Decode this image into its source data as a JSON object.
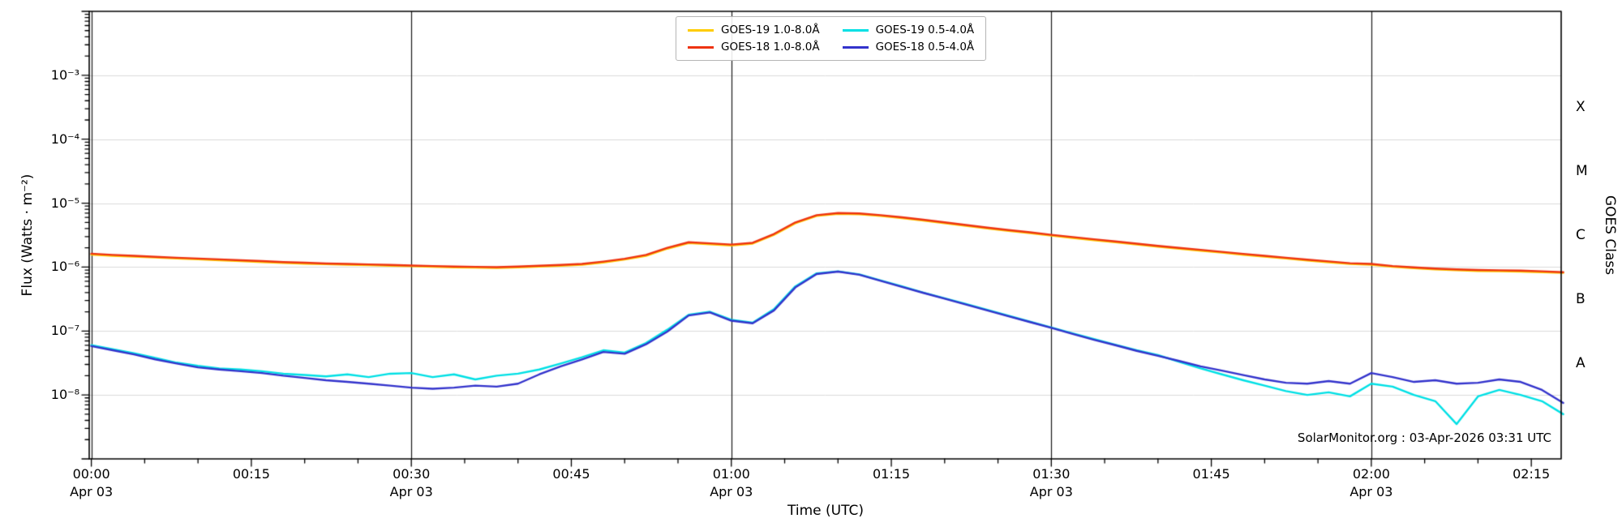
{
  "chart_data": {
    "type": "line",
    "title": "",
    "xlabel": "Time (UTC)",
    "ylabel": "Flux (Watts · m⁻²)",
    "ylabel_right": "GOES Class",
    "watermark": "SolarMonitor.org : 03-Apr-2026 03:31 UTC",
    "y_scale": "log",
    "ylim": [
      1e-09,
      0.01
    ],
    "x_axis_note": "minutes after 00:00 UTC on Apr 03",
    "x_range_minutes": [
      -0.2,
      137.8
    ],
    "grid": "horizontal gridlines at each decade",
    "legend_position": "top-center, 2 columns",
    "day_lines_minutes": [
      0,
      30,
      60,
      90,
      120
    ],
    "colors": {
      "background": "#ffffff",
      "grid": "#dcdcdc",
      "day_line": "#1a1a1a",
      "axis": "#000000"
    },
    "yticks": [
      {
        "label": "10⁻³",
        "value": 0.001
      },
      {
        "label": "10⁻⁴",
        "value": 0.0001
      },
      {
        "label": "10⁻⁵",
        "value": 1e-05
      },
      {
        "label": "10⁻⁶",
        "value": 1e-06
      },
      {
        "label": "10⁻⁷",
        "value": 1e-07
      },
      {
        "label": "10⁻⁸",
        "value": 1e-08
      }
    ],
    "goes_class_labels": [
      {
        "label": "X",
        "value": 0.0003162
      },
      {
        "label": "M",
        "value": 3.162e-05
      },
      {
        "label": "C",
        "value": 3.162e-06
      },
      {
        "label": "B",
        "value": 3.162e-07
      },
      {
        "label": "A",
        "value": 3.162e-08
      }
    ],
    "xticks": [
      {
        "label": "00:00",
        "minute": 0,
        "sub": "Apr 03"
      },
      {
        "label": "00:15",
        "minute": 15
      },
      {
        "label": "00:30",
        "minute": 30,
        "sub": "Apr 03"
      },
      {
        "label": "00:45",
        "minute": 45
      },
      {
        "label": "01:00",
        "minute": 60,
        "sub": "Apr 03"
      },
      {
        "label": "01:15",
        "minute": 75
      },
      {
        "label": "01:30",
        "minute": 90,
        "sub": "Apr 03"
      },
      {
        "label": "01:45",
        "minute": 105
      },
      {
        "label": "02:00",
        "minute": 120,
        "sub": "Apr 03"
      },
      {
        "label": "02:15",
        "minute": 135
      }
    ],
    "x_minutes": [
      0,
      2,
      4,
      6,
      8,
      10,
      12,
      14,
      16,
      18,
      20,
      22,
      24,
      26,
      28,
      30,
      32,
      34,
      36,
      38,
      40,
      42,
      44,
      46,
      48,
      50,
      52,
      54,
      56,
      58,
      60,
      62,
      64,
      66,
      68,
      70,
      72,
      74,
      76,
      78,
      80,
      82,
      84,
      86,
      88,
      90,
      92,
      94,
      96,
      98,
      100,
      102,
      104,
      106,
      108,
      110,
      112,
      114,
      116,
      118,
      120,
      122,
      124,
      126,
      128,
      130,
      132,
      134,
      136,
      138
    ],
    "series": [
      {
        "name": "GOES-19 1.0-8.0Å",
        "color": "#ffcc00",
        "scale": 1e-06,
        "values": [
          1.57,
          1.5,
          1.46,
          1.41,
          1.36,
          1.32,
          1.28,
          1.24,
          1.2,
          1.16,
          1.13,
          1.11,
          1.09,
          1.07,
          1.05,
          1.03,
          1.01,
          0.99,
          0.98,
          0.97,
          0.99,
          1.02,
          1.05,
          1.09,
          1.18,
          1.31,
          1.5,
          1.94,
          2.38,
          2.28,
          2.18,
          2.33,
          3.2,
          4.85,
          6.31,
          6.79,
          6.69,
          6.31,
          5.82,
          5.34,
          4.85,
          4.41,
          4.03,
          3.69,
          3.4,
          3.1,
          2.86,
          2.64,
          2.44,
          2.26,
          2.09,
          1.94,
          1.8,
          1.68,
          1.56,
          1.46,
          1.36,
          1.27,
          1.19,
          1.12,
          1.09,
          1.01,
          0.96,
          0.92,
          0.89,
          0.87,
          0.86,
          0.85,
          0.83,
          0.81
        ]
      },
      {
        "name": "GOES-18 1.0-8.0Å",
        "color": "#ee3311",
        "scale": 1e-06,
        "values": [
          1.62,
          1.55,
          1.5,
          1.45,
          1.4,
          1.36,
          1.32,
          1.28,
          1.24,
          1.2,
          1.17,
          1.14,
          1.12,
          1.1,
          1.08,
          1.06,
          1.04,
          1.02,
          1.01,
          1.0,
          1.02,
          1.05,
          1.08,
          1.12,
          1.22,
          1.35,
          1.55,
          2.0,
          2.45,
          2.35,
          2.25,
          2.4,
          3.3,
          5.0,
          6.5,
          7.0,
          6.9,
          6.5,
          6.0,
          5.5,
          5.0,
          4.55,
          4.15,
          3.8,
          3.5,
          3.2,
          2.95,
          2.72,
          2.52,
          2.33,
          2.15,
          2.0,
          1.86,
          1.73,
          1.61,
          1.5,
          1.4,
          1.31,
          1.23,
          1.15,
          1.12,
          1.04,
          0.99,
          0.95,
          0.92,
          0.9,
          0.89,
          0.88,
          0.86,
          0.83
        ]
      },
      {
        "name": "GOES-19 0.5-4.0Å",
        "color": "#00e0e5",
        "scale": 1e-08,
        "values": [
          6.0,
          5.2,
          4.5,
          3.8,
          3.2,
          2.85,
          2.6,
          2.5,
          2.35,
          2.15,
          2.05,
          1.95,
          2.1,
          1.9,
          2.15,
          2.2,
          1.9,
          2.1,
          1.75,
          2.0,
          2.15,
          2.5,
          3.1,
          3.9,
          5.0,
          4.6,
          6.5,
          10.5,
          18,
          20,
          15,
          13.5,
          22,
          50,
          80,
          86,
          77,
          62,
          50,
          40,
          32.5,
          26.5,
          21.5,
          17.3,
          14,
          11.4,
          9.2,
          7.5,
          6.1,
          5.0,
          4.2,
          3.3,
          2.6,
          2.1,
          1.7,
          1.4,
          1.15,
          1.0,
          1.1,
          0.95,
          1.5,
          1.35,
          1.0,
          0.8,
          0.35,
          0.95,
          1.2,
          1.0,
          0.8,
          0.5
        ]
      },
      {
        "name": "GOES-18 0.5-4.0Å",
        "color": "#3333cc",
        "scale": 1e-08,
        "values": [
          5.8,
          5.0,
          4.3,
          3.6,
          3.1,
          2.7,
          2.5,
          2.35,
          2.2,
          2.0,
          1.85,
          1.7,
          1.6,
          1.5,
          1.4,
          1.3,
          1.25,
          1.3,
          1.4,
          1.35,
          1.5,
          2.1,
          2.8,
          3.6,
          4.7,
          4.4,
          6.2,
          9.8,
          17.5,
          19.5,
          14.5,
          13.2,
          21,
          48,
          78,
          85,
          76,
          61,
          49,
          39.5,
          32,
          26,
          21,
          17,
          13.8,
          11.2,
          9.0,
          7.3,
          6.0,
          4.9,
          4.1,
          3.4,
          2.8,
          2.4,
          2.05,
          1.75,
          1.55,
          1.5,
          1.65,
          1.5,
          2.2,
          1.9,
          1.6,
          1.7,
          1.5,
          1.55,
          1.75,
          1.6,
          1.2,
          0.75
        ]
      }
    ]
  }
}
